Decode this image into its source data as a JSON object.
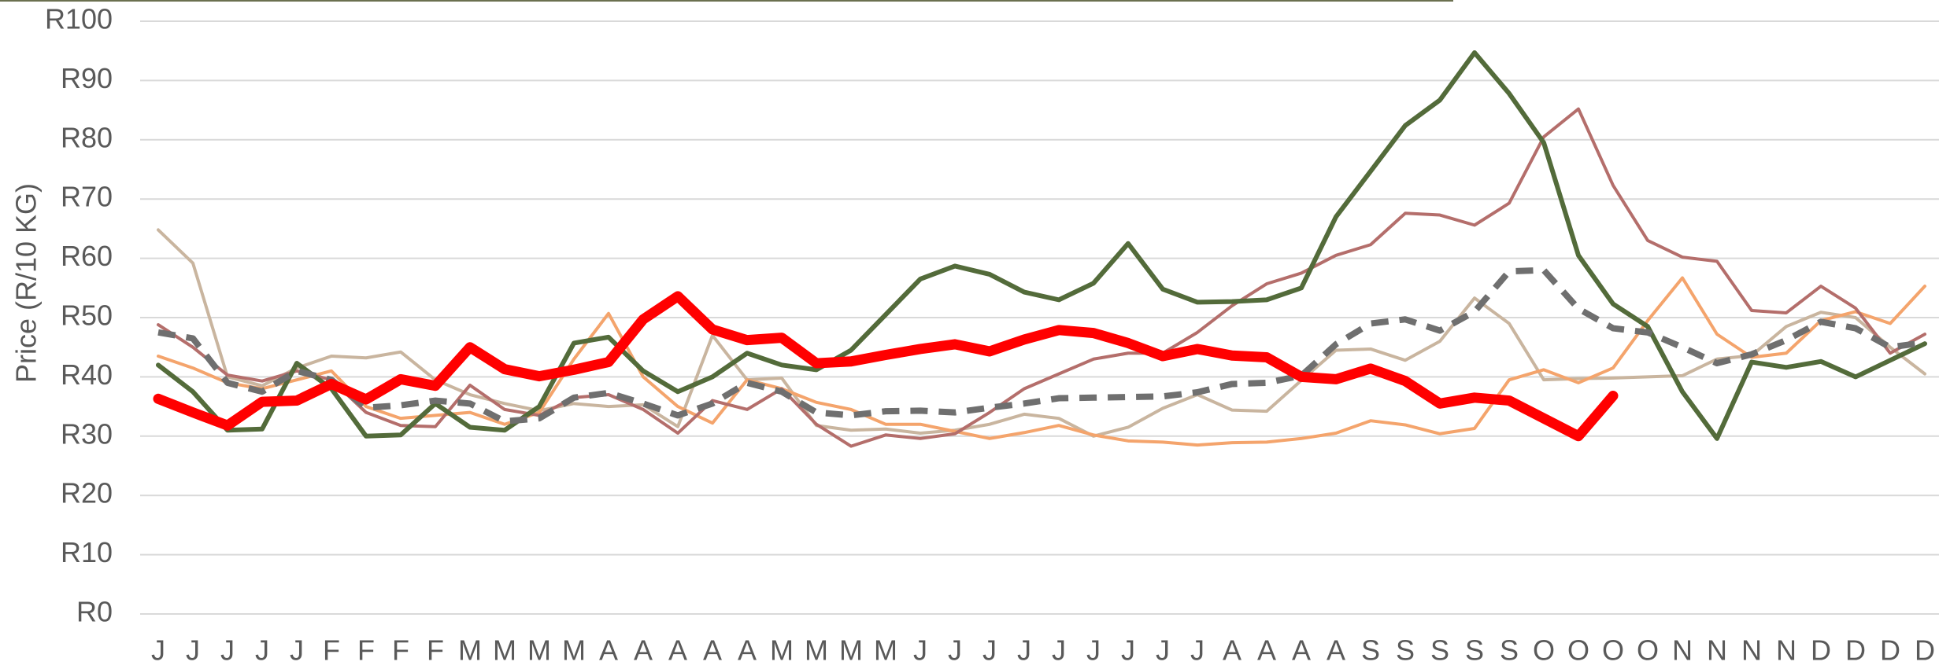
{
  "chart_data": {
    "type": "line",
    "y_label": "Price (R/10 KG)",
    "categories": [
      "J",
      "J",
      "J",
      "J",
      "J",
      "F",
      "F",
      "F",
      "F",
      "M",
      "M",
      "M",
      "M",
      "A",
      "A",
      "A",
      "A",
      "A",
      "M",
      "M",
      "M",
      "M",
      "J",
      "J",
      "J",
      "J",
      "J",
      "J",
      "J",
      "J",
      "J",
      "A",
      "A",
      "A",
      "A",
      "S",
      "S",
      "S",
      "S",
      "S",
      "O",
      "O",
      "O",
      "O",
      "N",
      "N",
      "N",
      "N",
      "D",
      "D",
      "D",
      "D"
    ],
    "ylim": [
      0,
      100
    ],
    "yticks": [
      {
        "value": 0,
        "label": "R0"
      },
      {
        "value": 10,
        "label": "R10"
      },
      {
        "value": 20,
        "label": "R20"
      },
      {
        "value": 30,
        "label": "R30"
      },
      {
        "value": 40,
        "label": "R40"
      },
      {
        "value": 50,
        "label": "R50"
      },
      {
        "value": 60,
        "label": "R60"
      },
      {
        "value": 70,
        "label": "R70"
      },
      {
        "value": 80,
        "label": "R80"
      },
      {
        "value": 90,
        "label": "R90"
      },
      {
        "value": 100,
        "label": "R100"
      }
    ],
    "grid": true,
    "series": [
      {
        "color": "#c9b59f",
        "line_width": 4,
        "dashed": false,
        "values": [
          64.8,
          59.2,
          40,
          38.5,
          41.5,
          43.5,
          43.2,
          44.2,
          39.5,
          37,
          35.5,
          34.3,
          35.5,
          35,
          35.3,
          31.6,
          47,
          39.5,
          39.8,
          31.8,
          31,
          31.2,
          30.5,
          31,
          32,
          33.7,
          33,
          30,
          31.5,
          34.7,
          37,
          34.4,
          34.2,
          39.4,
          44.5,
          44.7,
          42.8,
          46,
          53.3,
          49,
          39.5,
          39.7,
          39.8,
          40,
          40.2,
          43,
          43.6,
          48.5,
          50.9,
          50,
          45,
          40.5
        ]
      },
      {
        "color": "#f4a46c",
        "line_width": 4,
        "dashed": false,
        "values": [
          43.5,
          41.5,
          39,
          38,
          39.5,
          41,
          35,
          33,
          33.5,
          34,
          32,
          34,
          43,
          50.7,
          40,
          35,
          32.2,
          39.5,
          38,
          35.7,
          34.5,
          32,
          32,
          30.8,
          29.6,
          30.6,
          31.8,
          30.2,
          29.2,
          29,
          28.5,
          28.9,
          29,
          29.6,
          30.5,
          32.6,
          31.9,
          30.4,
          31.3,
          39.5,
          41.2,
          39,
          41.5,
          49.5,
          56.7,
          47.2,
          43.3,
          44,
          49.5,
          51,
          49,
          55.3
        ]
      },
      {
        "color": "#b46e6b",
        "line_width": 4,
        "dashed": false,
        "values": [
          48.8,
          45,
          40.3,
          39.3,
          41,
          39.5,
          34,
          31.8,
          31.6,
          38.6,
          34.5,
          33.5,
          36.5,
          37,
          34.5,
          30.5,
          36,
          34.5,
          38,
          32,
          28.3,
          30.2,
          29.6,
          30.4,
          34,
          38,
          40.5,
          43,
          44,
          44,
          47.5,
          52,
          55.7,
          57.5,
          60.5,
          62.3,
          67.6,
          67.3,
          65.6,
          69.3,
          80.5,
          85.2,
          72.3,
          63,
          60.2,
          59.5,
          51.2,
          50.8,
          55.3,
          51.6,
          44,
          47.2
        ]
      },
      {
        "color": "#536b3a",
        "line_width": 6,
        "dashed": false,
        "values": [
          42,
          37.5,
          31,
          31.2,
          42.3,
          38,
          30,
          30.2,
          35.5,
          31.5,
          31,
          35,
          45.7,
          46.7,
          41,
          37.5,
          40,
          44,
          42,
          41.2,
          44.5,
          50.5,
          56.5,
          58.7,
          57.3,
          54.3,
          53,
          55.8,
          62.5,
          54.8,
          52.6,
          52.7,
          53,
          55,
          67,
          74.7,
          82.4,
          86.7,
          94.7,
          87.8,
          79.5,
          60.5,
          52.3,
          48.5,
          37.5,
          29.6,
          42.5,
          41.6,
          42.6,
          40,
          42.8,
          45.6
        ]
      },
      {
        "color": "#6f6f6f",
        "line_width": 8,
        "dashed": true,
        "values": [
          47.5,
          46.5,
          39,
          37.5,
          41,
          39.5,
          34.8,
          35.2,
          36,
          35.5,
          32.5,
          33,
          36.5,
          37.3,
          35.5,
          33.5,
          35.5,
          39,
          37.5,
          34,
          33.5,
          34.2,
          34.3,
          34,
          34.8,
          35.5,
          36.4,
          36.5,
          36.6,
          36.7,
          37.4,
          38.8,
          39,
          40.2,
          45.5,
          49,
          49.7,
          47.8,
          51,
          57.8,
          58,
          51.5,
          48.2,
          47.5,
          45,
          42.3,
          43.8,
          46.2,
          49.3,
          48.2,
          45,
          45.8
        ]
      },
      {
        "color": "#ff0000",
        "line_width": 13,
        "dashed": false,
        "values": [
          36.3,
          34,
          31.8,
          35.8,
          36,
          38.8,
          36.2,
          39.6,
          38.5,
          45,
          41.3,
          40.1,
          41.2,
          42.5,
          49.7,
          53.6,
          48,
          46.2,
          46.6,
          42.3,
          42.6,
          43.7,
          44.7,
          45.5,
          44.3,
          46.3,
          47.9,
          47.4,
          45.7,
          43.5,
          44.7,
          43.6,
          43.3,
          40,
          39.6,
          41.4,
          39.3,
          35.5,
          36.5,
          36,
          33,
          30,
          36.8,
          null,
          null,
          null,
          null,
          null,
          null,
          null,
          null,
          null
        ]
      }
    ]
  }
}
